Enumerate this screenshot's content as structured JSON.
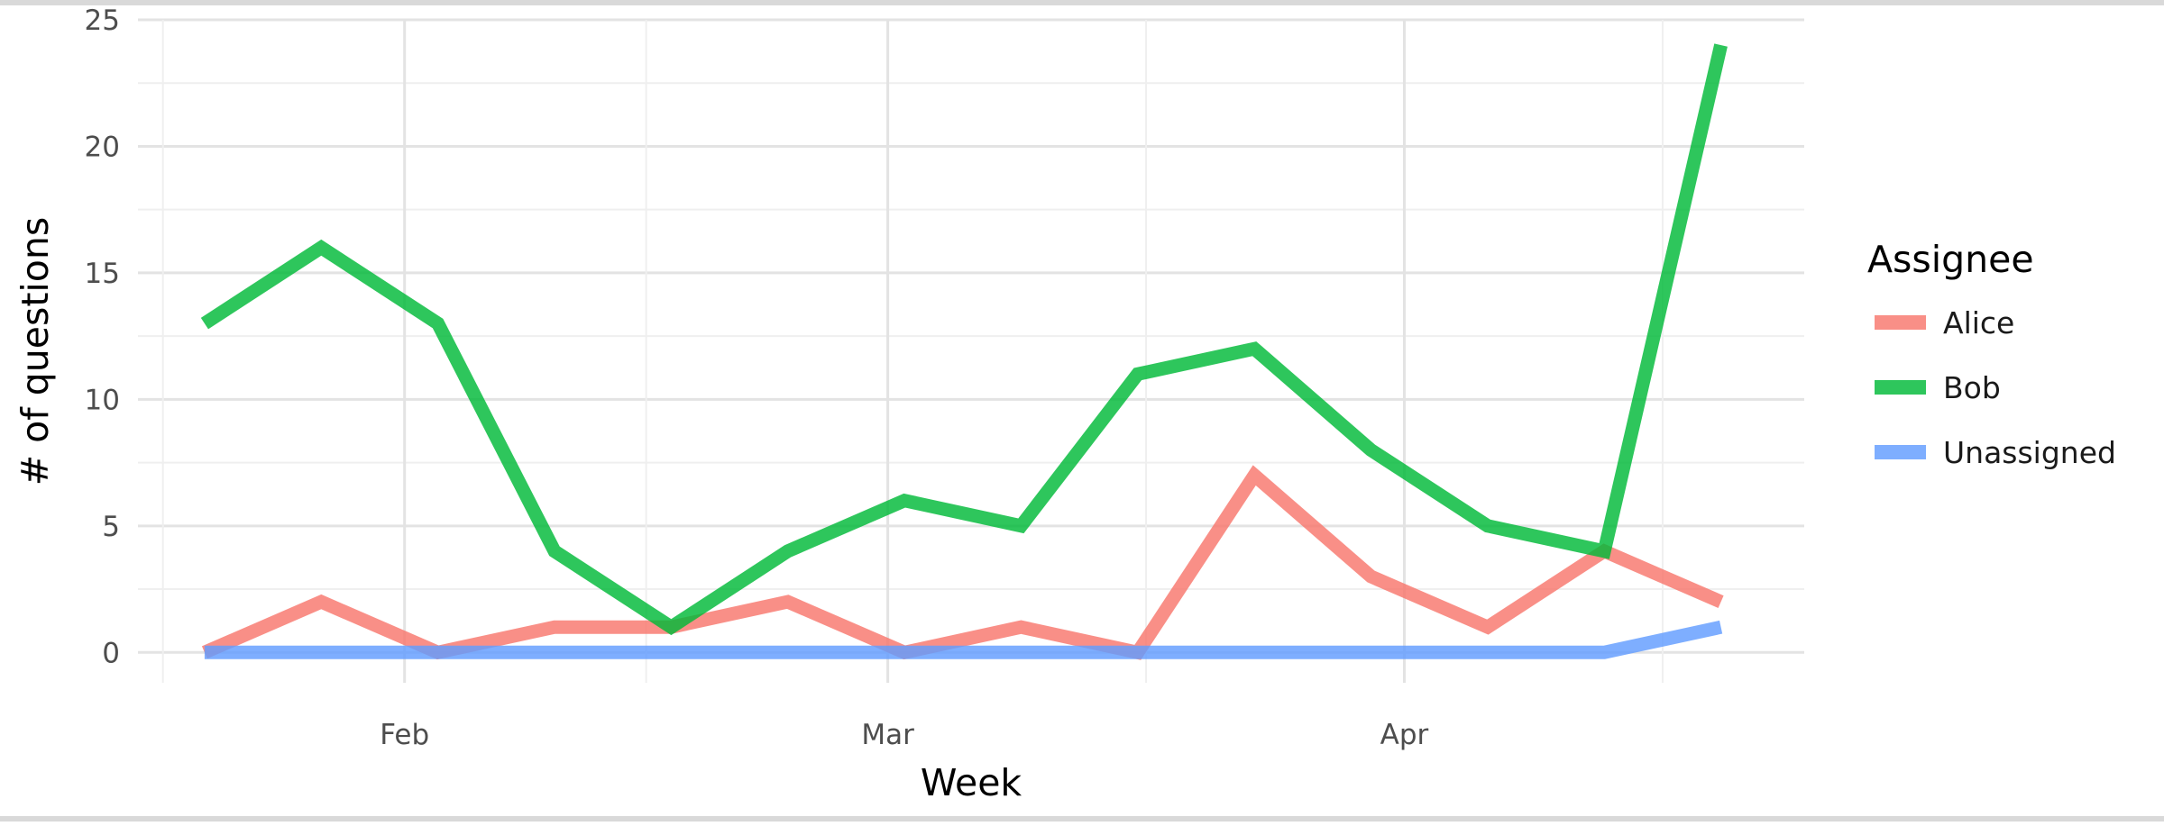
{
  "chart_data": {
    "type": "line",
    "xlabel": "Week",
    "ylabel": "# of questions",
    "x_tick_labels": [
      "Feb",
      "Mar",
      "Apr"
    ],
    "x_tick_dates": [
      "2020-02-01",
      "2020-03-01",
      "2020-04-01"
    ],
    "x": [
      "2020-01-20",
      "2020-01-27",
      "2020-02-03",
      "2020-02-10",
      "2020-02-17",
      "2020-02-24",
      "2020-03-02",
      "2020-03-09",
      "2020-03-16",
      "2020-03-23",
      "2020-03-30",
      "2020-04-06",
      "2020-04-13",
      "2020-04-20"
    ],
    "xlim": [
      "2020-01-16",
      "2020-04-25"
    ],
    "ylim": [
      -1.2,
      25
    ],
    "y_ticks": [
      0,
      5,
      10,
      15,
      20,
      25
    ],
    "grid": true,
    "legend": {
      "title": "Assignee",
      "position": "right"
    },
    "series": [
      {
        "name": "Alice",
        "color": "#F8766D",
        "values": [
          0,
          2,
          0,
          1,
          1,
          2,
          0,
          1,
          0,
          7,
          3,
          1,
          4,
          2
        ]
      },
      {
        "name": "Bob",
        "color": "#00BA38",
        "values": [
          13,
          16,
          13,
          4,
          1,
          4,
          6,
          5,
          11,
          12,
          8,
          5,
          4,
          24
        ]
      },
      {
        "name": "Unassigned",
        "color": "#619CFF",
        "values": [
          0,
          0,
          0,
          0,
          0,
          0,
          0,
          0,
          0,
          0,
          0,
          0,
          0,
          1
        ]
      }
    ]
  }
}
